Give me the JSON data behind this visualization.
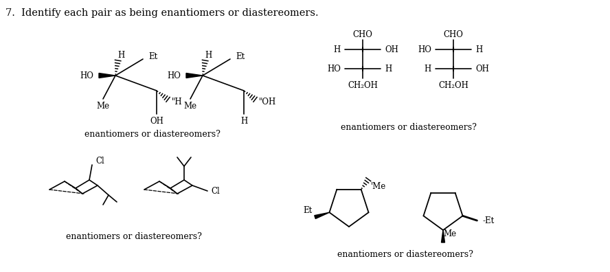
{
  "title": "7.  Identify each pair as being enantiomers or diastereomers.",
  "title_fontsize": 10.5,
  "bg_color": "#ffffff",
  "text_color": "#000000",
  "struct_fontsize": 8.5,
  "question_fontsize": 9,
  "question1": "enantiomers or diastereomers?",
  "question2": "enantiomers or diastereomers?",
  "question3": "enantiomers or diastereomers?",
  "question4": "enantiomers or diastereomers?"
}
